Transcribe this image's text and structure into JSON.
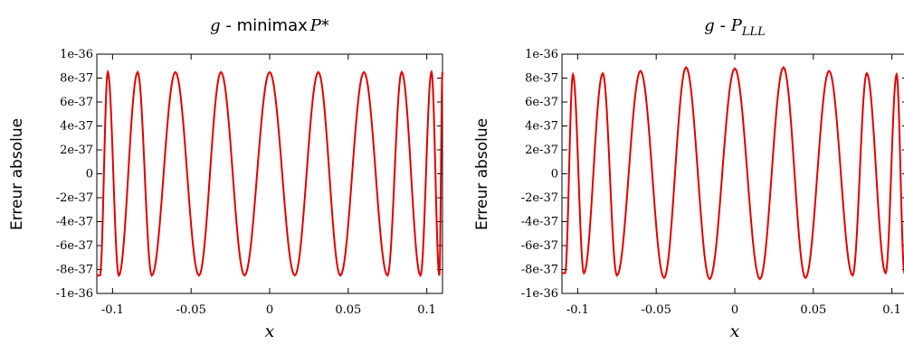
{
  "chart_data": [
    {
      "type": "line",
      "title": {
        "var": "g",
        "sep": " - ",
        "method": "minimax",
        "sym": "P",
        "suffix": "*"
      },
      "xlabel": "x",
      "ylabel": "Erreur absolue",
      "xlim": [
        -0.11,
        0.11
      ],
      "ylim": [
        -1e-36,
        1e-36
      ],
      "x_ticks": [
        "-0.1",
        "-0.05",
        "0",
        "0.05",
        "0.1"
      ],
      "x_tick_values": [
        -0.1,
        -0.05,
        0,
        0.05,
        0.1
      ],
      "y_ticks": [
        "1e-36",
        "8e-37",
        "6e-37",
        "4e-37",
        "2e-37",
        "0",
        "-2e-37",
        "-4e-37",
        "-6e-37",
        "-8e-37",
        "-1e-36"
      ],
      "y_tick_values": [
        1e-36,
        8e-37,
        6e-37,
        4e-37,
        2e-37,
        0,
        -2e-37,
        -4e-37,
        -6e-37,
        -8e-37,
        -1e-36
      ],
      "line_color": "#e00000",
      "series": [
        {
          "x": [
            -0.11,
            -0.108,
            -0.103,
            -0.096,
            -0.084,
            -0.075,
            -0.06,
            -0.045,
            -0.031,
            -0.016,
            0.0,
            0.016,
            0.031,
            0.045,
            0.06,
            0.075,
            0.084,
            0.096,
            0.103,
            0.108,
            0.11
          ],
          "values": [
            -8.5e-37,
            -8.5e-37,
            8.5e-37,
            -8.5e-37,
            8.5e-37,
            -8.5e-37,
            8.5e-37,
            -8.5e-37,
            8.5e-37,
            -8.5e-37,
            8.5e-37,
            -8.5e-37,
            8.5e-37,
            -8.5e-37,
            8.5e-37,
            -8.5e-37,
            8.5e-37,
            -8.5e-37,
            8.5e-37,
            -8.5e-37,
            8.5e-37
          ]
        }
      ]
    },
    {
      "type": "line",
      "title": {
        "var": "g",
        "sep": " - ",
        "method": "",
        "sym": "P",
        "sub": "LLL"
      },
      "xlabel": "x",
      "ylabel": "Erreur absolue",
      "xlim": [
        -0.11,
        0.11
      ],
      "ylim": [
        -1e-36,
        1e-36
      ],
      "x_ticks": [
        "-0.1",
        "-0.05",
        "0",
        "0.05",
        "0.1"
      ],
      "x_tick_values": [
        -0.1,
        -0.05,
        0,
        0.05,
        0.1
      ],
      "y_ticks": [
        "1e-36",
        "8e-37",
        "6e-37",
        "4e-37",
        "2e-37",
        "0",
        "-2e-37",
        "-4e-37",
        "-6e-37",
        "-8e-37",
        "-1e-36"
      ],
      "y_tick_values": [
        1e-36,
        8e-37,
        6e-37,
        4e-37,
        2e-37,
        0,
        -2e-37,
        -4e-37,
        -6e-37,
        -8e-37,
        -1e-36
      ],
      "line_color": "#e00000",
      "series": [
        {
          "x": [
            -0.11,
            -0.108,
            -0.103,
            -0.096,
            -0.084,
            -0.075,
            -0.06,
            -0.045,
            -0.031,
            -0.016,
            0.0,
            0.016,
            0.031,
            0.045,
            0.06,
            0.075,
            0.084,
            0.096,
            0.103,
            0.108,
            0.11
          ],
          "values": [
            -8.3e-37,
            -8.3e-37,
            8.3e-37,
            -8.3e-37,
            8.4e-37,
            -8.5e-37,
            8.6e-37,
            -8.7e-37,
            8.9e-37,
            -8.8e-37,
            8.8e-37,
            -8.8e-37,
            8.9e-37,
            -8.7e-37,
            8.6e-37,
            -8.5e-37,
            8.4e-37,
            -8.3e-37,
            8.3e-37,
            -8.3e-37,
            0
          ]
        }
      ]
    }
  ]
}
